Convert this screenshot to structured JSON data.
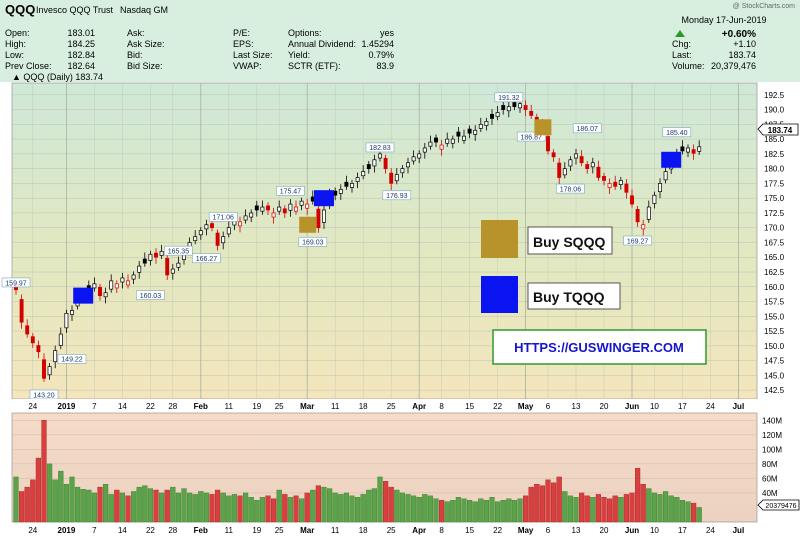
{
  "header": {
    "symbol": "QQQ",
    "name": "Invesco QQQ Trust",
    "exchange": "Nasdaq GM",
    "watermark": "@ StockCharts.com",
    "quote_left": [
      {
        "label": "Open:",
        "value": "183.01"
      },
      {
        "label": "High:",
        "value": "184.25"
      },
      {
        "label": "Low:",
        "value": "182.84"
      },
      {
        "label": "Prev Close:",
        "value": "182.64"
      }
    ],
    "quote_mid": [
      {
        "label": "Ask:",
        "value": ""
      },
      {
        "label": "Ask Size:",
        "value": ""
      },
      {
        "label": "Bid:",
        "value": ""
      },
      {
        "label": "Bid Size:",
        "value": ""
      }
    ],
    "quote_mid2": [
      {
        "label": "P/E:",
        "value": ""
      },
      {
        "label": "EPS:",
        "value": ""
      },
      {
        "label": "Last Size:",
        "value": ""
      },
      {
        "label": "VWAP:",
        "value": ""
      }
    ],
    "quote_right": [
      {
        "label": "Options:",
        "value": "yes"
      },
      {
        "label": "Annual Dividend:",
        "value": "1.45294"
      },
      {
        "label": "Yield:",
        "value": "0.79%"
      },
      {
        "label": "SCTR (ETF):",
        "value": "83.9"
      }
    ],
    "date": "Monday  17-Jun-2019",
    "change_pct": "+0.60%",
    "quote_far": [
      {
        "label": "Chg:",
        "value": "+1.10"
      },
      {
        "label": "Last:",
        "value": "183.74"
      },
      {
        "label": "Volume:",
        "value": "20,379,476"
      }
    ],
    "legend_price": "QQQ (Daily) 183.74",
    "last_price_tag": "183.74",
    "volume_tag": "20379476"
  },
  "annotations": {
    "buy_sqqq": "Buy SQQQ",
    "buy_tqqq": "Buy TQQQ",
    "url": "HTTPS://GUSWINGER.COM",
    "sqqq_color": "#b8922a",
    "tqqq_color": "#0a14f0"
  },
  "chart_data": {
    "type": "candlestick",
    "x_ticks": [
      "24",
      "2019",
      "7",
      "14",
      "22",
      "28",
      "Feb",
      "11",
      "19",
      "25",
      "Mar",
      "11",
      "18",
      "25",
      "Apr",
      "8",
      "15",
      "22",
      "May",
      "6",
      "13",
      "20",
      "Jun",
      "10",
      "17",
      "24",
      "Jul"
    ],
    "y_ticks": [
      142.5,
      145.0,
      147.5,
      150.0,
      152.5,
      155.0,
      157.5,
      160.0,
      162.5,
      165.0,
      167.5,
      170.0,
      172.5,
      175.0,
      177.5,
      180.0,
      182.5,
      185.0,
      187.5,
      190.0,
      192.5
    ],
    "ylim": [
      141.0,
      194.5
    ],
    "price_labels": [
      "159.97",
      "143.20",
      "149.22",
      "160.03",
      "165.35",
      "166.27",
      "171.06",
      "175.47",
      "169.03",
      "182.83",
      "176.93",
      "191.32",
      "186.87",
      "178.06",
      "186.07",
      "169.27",
      "185.40"
    ],
    "volume_ticks": [
      "40M",
      "60M",
      "80M",
      "100M",
      "120M",
      "140M"
    ],
    "volume_ylim": [
      0,
      150
    ],
    "close": [
      159.5,
      154.0,
      152.0,
      150.5,
      149.0,
      144.5,
      146.5,
      149.2,
      152.0,
      155.5,
      156.0,
      158.5,
      159.0,
      159.5,
      160.5,
      158.5,
      159.0,
      161.0,
      160.5,
      161.5,
      161.0,
      162.0,
      163.5,
      164.0,
      165.5,
      165.0,
      166.0,
      162.0,
      163.0,
      164.0,
      166.0,
      167.5,
      168.5,
      169.5,
      170.5,
      170.0,
      167.0,
      168.5,
      170.0,
      171.5,
      171.0,
      172.0,
      172.5,
      173.0,
      173.5,
      173.0,
      172.5,
      173.5,
      172.5,
      174.0,
      173.5,
      174.5,
      174.0,
      174.5,
      170.0,
      173.0,
      175.5,
      175.5,
      176.5,
      177.0,
      177.5,
      178.5,
      179.5,
      180.0,
      181.5,
      182.5,
      180.0,
      177.5,
      179.0,
      180.0,
      181.0,
      182.0,
      182.5,
      183.5,
      184.5,
      184.5,
      184.0,
      185.0,
      185.0,
      185.5,
      185.5,
      186.0,
      186.5,
      187.5,
      188.0,
      188.5,
      189.5,
      190.0,
      190.5,
      190.5,
      191.0,
      190.0,
      189.0,
      188.0,
      186.5,
      183.0,
      182.0,
      178.5,
      180.0,
      181.5,
      182.5,
      181.0,
      180.0,
      181.0,
      178.5,
      178.0,
      177.5,
      177.0,
      178.0,
      176.0,
      174.0,
      171.0,
      170.5,
      173.5,
      175.5,
      177.5,
      179.5,
      181.0,
      182.5,
      183.0,
      183.5,
      182.6,
      183.7
    ],
    "volume": [
      62,
      42,
      48,
      58,
      88,
      140,
      80,
      58,
      70,
      52,
      62,
      48,
      45,
      44,
      40,
      48,
      52,
      38,
      44,
      40,
      36,
      42,
      48,
      50,
      46,
      44,
      40,
      44,
      48,
      40,
      46,
      40,
      38,
      42,
      40,
      38,
      44,
      40,
      36,
      38,
      36,
      40,
      34,
      30,
      34,
      36,
      32,
      44,
      38,
      34,
      36,
      32,
      40,
      44,
      50,
      48,
      46,
      40,
      38,
      40,
      36,
      34,
      38,
      44,
      46,
      62,
      56,
      48,
      44,
      40,
      38,
      36,
      34,
      38,
      36,
      32,
      30,
      28,
      30,
      34,
      32,
      30,
      28,
      32,
      30,
      34,
      28,
      30,
      32,
      30,
      32,
      36,
      48,
      52,
      50,
      58,
      54,
      62,
      42,
      36,
      34,
      40,
      36,
      34,
      38,
      34,
      32,
      36,
      34,
      38,
      40,
      74,
      52,
      46,
      40,
      38,
      42,
      36,
      34,
      30,
      28,
      26,
      20
    ]
  }
}
